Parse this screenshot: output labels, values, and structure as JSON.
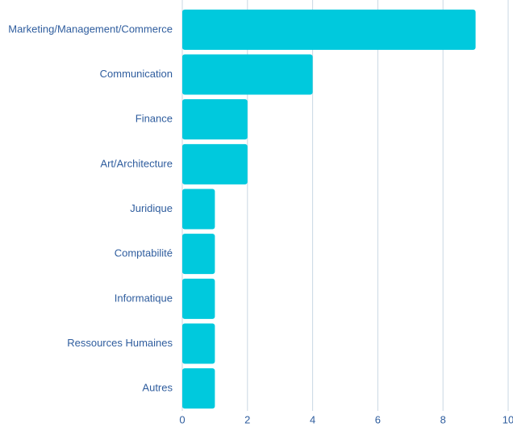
{
  "chart_data": {
    "type": "barh",
    "categories": [
      "Marketing/Management/Commerce",
      "Communication",
      "Finance",
      "Art/Architecture",
      "Juridique",
      "Comptabilité",
      "Informatique",
      "Ressources Humaines",
      "Autres"
    ],
    "values": [
      9,
      4,
      2,
      2,
      1,
      1,
      1,
      1,
      1
    ],
    "color": "#00c9dd",
    "xlim": [
      0,
      10
    ],
    "xticks": [
      0,
      2,
      4,
      6,
      8,
      10
    ],
    "grid": true
  }
}
